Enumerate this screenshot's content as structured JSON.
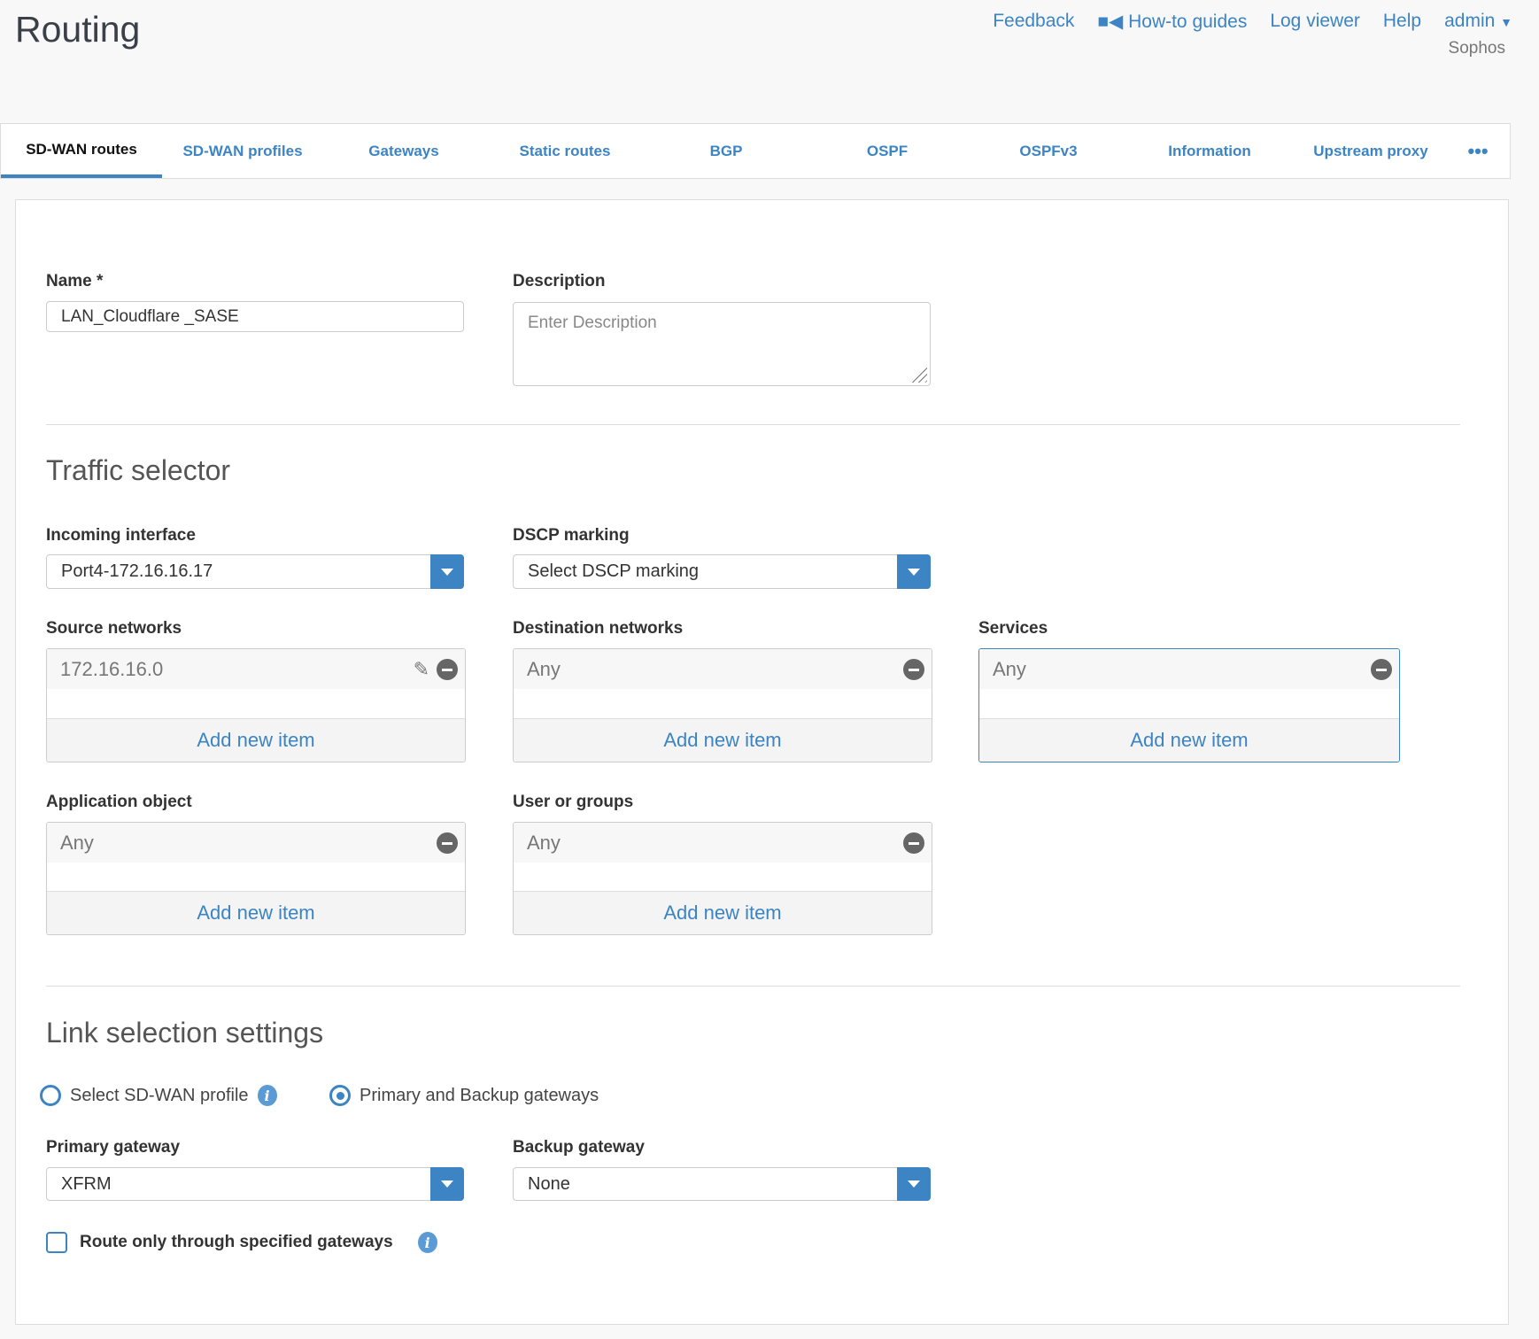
{
  "header": {
    "title": "Routing",
    "links": [
      "Feedback",
      "How-to guides",
      "Log viewer",
      "Help"
    ],
    "user": "admin",
    "org": "Sophos"
  },
  "tabs": [
    "SD-WAN routes",
    "SD-WAN profiles",
    "Gateways",
    "Static routes",
    "BGP",
    "OSPF",
    "OSPFv3",
    "Information",
    "Upstream proxy"
  ],
  "more_icon": "ellipsis-icon",
  "form": {
    "name_label": "Name *",
    "name_value": "LAN_Cloudflare _SASE",
    "desc_label": "Description",
    "desc_placeholder": "Enter Description",
    "traffic_title": "Traffic selector",
    "incoming_label": "Incoming interface",
    "incoming_value": "Port4-172.16.16.17",
    "dscp_label": "DSCP marking",
    "dscp_value": "Select DSCP marking",
    "source_label": "Source networks",
    "source_item": "172.16.16.0",
    "dest_label": "Destination networks",
    "dest_item": "Any",
    "services_label": "Services",
    "services_item": "Any",
    "app_label": "Application object",
    "app_item": "Any",
    "users_label": "User or groups",
    "users_item": "Any",
    "add_new": "Add new item",
    "link_title": "Link selection settings",
    "radio_sdwan": "Select SD-WAN profile",
    "radio_gateways": "Primary and Backup gateways",
    "selected_radio": "Primary and Backup gateways",
    "primary_label": "Primary gateway",
    "primary_value": "XFRM",
    "backup_label": "Backup gateway",
    "backup_value": "None",
    "route_only_label": "Route only through specified gateways",
    "route_only_checked": false
  },
  "colors": {
    "accent": "#3c84c4"
  }
}
